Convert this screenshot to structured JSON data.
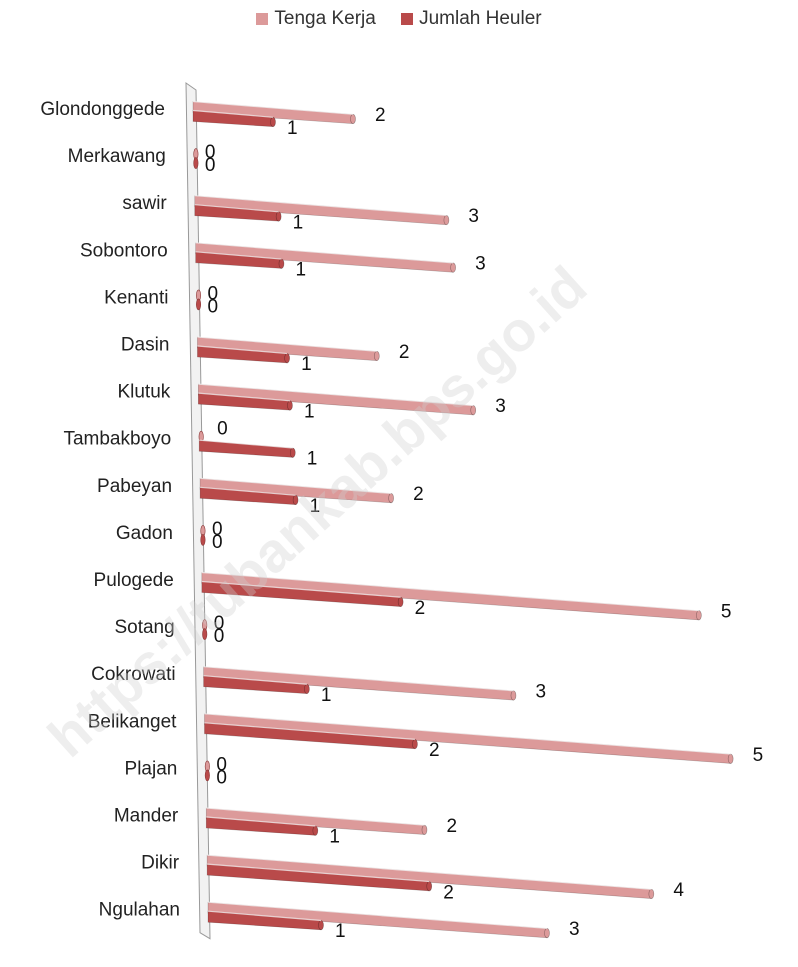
{
  "chart_data": {
    "type": "bar",
    "orientation": "horizontal",
    "style": "3d-perspective",
    "categories": [
      "Glondonggede",
      "Merkawang",
      "sawir",
      "Sobontoro",
      "Kenanti",
      "Dasin",
      "Klutuk",
      "Tambakboyo",
      "Pabeyan",
      "Gadon",
      "Pulogede",
      "Sotang",
      "Cokrowati",
      "Belikanget",
      "Plajan",
      "Mander",
      "Dikir",
      "Ngulahan"
    ],
    "series": [
      {
        "name": "Tenga Kerja",
        "color": "#dc9a9a",
        "values": [
          2,
          0,
          3,
          3,
          0,
          2,
          3,
          0,
          2,
          0,
          5,
          0,
          3,
          5,
          0,
          2,
          4,
          3
        ]
      },
      {
        "name": "Jumlah Heuler",
        "color": "#b94a4a",
        "values": [
          1,
          0,
          1,
          1,
          0,
          1,
          1,
          1,
          1,
          0,
          2,
          0,
          1,
          2,
          0,
          1,
          2,
          1
        ]
      }
    ],
    "legend_position": "top-center",
    "data_labels": true,
    "grid": false
  },
  "watermark": {
    "text": "https://tubankab.bps.go.id",
    "color": "#cfcfcf"
  }
}
